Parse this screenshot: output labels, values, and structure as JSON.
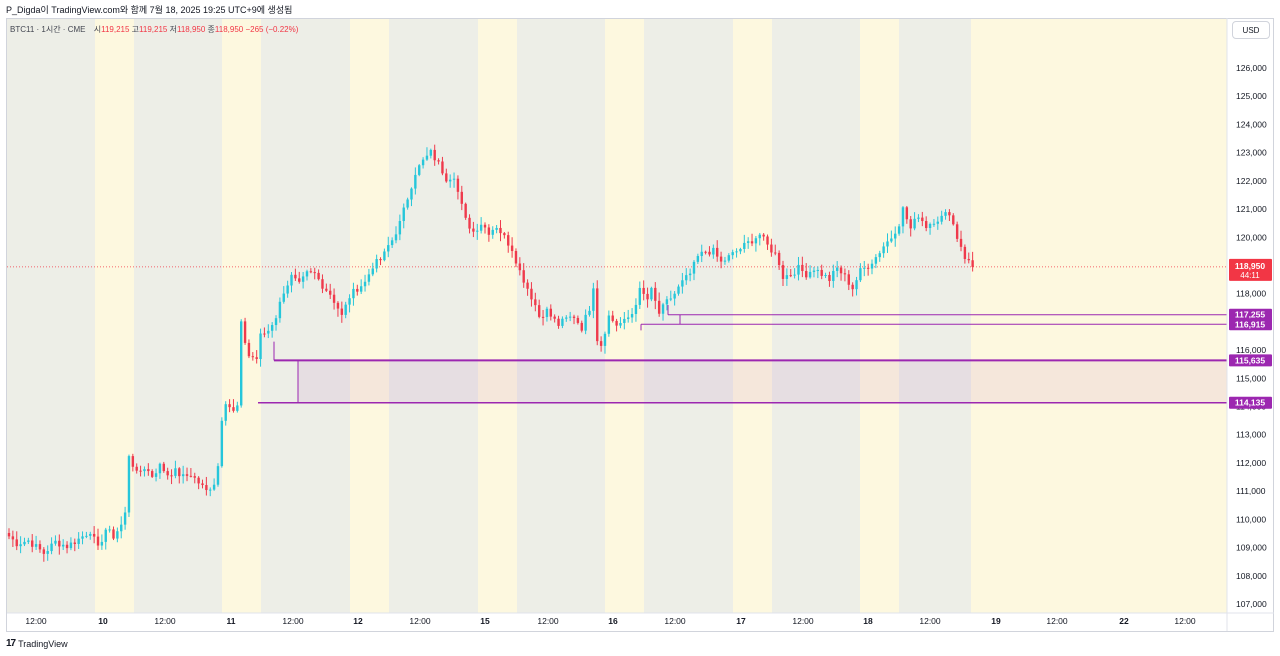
{
  "header": {
    "text": "P_Digda이 TradingView.com와 함께 7월 18, 2025 19:25 UTC+9에 생성됨"
  },
  "legend": {
    "symbol": "BTC11 · 1시간 · CME",
    "open_label": "시",
    "open_value": "119,215",
    "high_label": "고",
    "high_value": "119,215",
    "low_label": "저",
    "low_value": "118,950",
    "close_label": "종",
    "close_value": "118,950",
    "change": "−265 (−0.22%)"
  },
  "currency": "USD",
  "footer": {
    "logo": "17",
    "brand": "TradingView"
  },
  "colors": {
    "up": "#26c6da",
    "down": "#ef3a4c",
    "zone_line": "#9c27b0",
    "session_gray": "#edeee7",
    "session_yellow": "#fdf8df"
  },
  "chart_data": {
    "type": "candlestick",
    "symbol": "BTC11",
    "timeframe": "1시간",
    "ylim": [
      106700,
      127000
    ],
    "y_ticks": [
      107000,
      108000,
      109000,
      110000,
      111000,
      112000,
      113000,
      114000,
      115000,
      116000,
      117000,
      118000,
      119000,
      120000,
      121000,
      122000,
      123000,
      124000,
      125000,
      126000
    ],
    "y_tick_labels": [
      "107,000",
      "108,000",
      "109,000",
      "110,000",
      "111,000",
      "112,000",
      "113,000",
      "114,000",
      "115,000",
      "116,000",
      "117,000",
      "118,000",
      "119,000",
      "120,000",
      "121,000",
      "122,000",
      "123,000",
      "124,000",
      "125,000",
      "126,000"
    ],
    "x_tick_labels": [
      "12:00",
      "10",
      "12:00",
      "11",
      "12:00",
      "12",
      "12:00",
      "15",
      "12:00",
      "16",
      "12:00",
      "17",
      "12:00",
      "18",
      "12:00",
      "19",
      "12:00",
      "22",
      "12:00"
    ],
    "last_price": {
      "value": 118950,
      "label": "118,950",
      "countdown": "44:11"
    },
    "levels": [
      {
        "value": 117255,
        "label": "117,255"
      },
      {
        "value": 116915,
        "label": "116,915"
      },
      {
        "value": 115635,
        "label": "115,635"
      },
      {
        "value": 114135,
        "label": "114,135"
      }
    ],
    "zone": {
      "top": 115635,
      "bottom": 114135
    },
    "path": [
      [
        0,
        109400
      ],
      [
        2,
        109150
      ],
      [
        5,
        109250
      ],
      [
        9,
        108800
      ],
      [
        12,
        109200
      ],
      [
        15,
        109050
      ],
      [
        18,
        109300
      ],
      [
        21,
        109600
      ],
      [
        23,
        108950
      ],
      [
        25,
        109650
      ],
      [
        27,
        109400
      ],
      [
        29,
        109800
      ],
      [
        30,
        110200
      ],
      [
        31,
        112300
      ],
      [
        33,
        111600
      ],
      [
        35,
        111850
      ],
      [
        37,
        111550
      ],
      [
        39,
        111900
      ],
      [
        41,
        111600
      ],
      [
        43,
        111700
      ],
      [
        45,
        111500
      ],
      [
        47,
        111600
      ],
      [
        49,
        111300
      ],
      [
        51,
        111000
      ],
      [
        53,
        111300
      ],
      [
        54,
        111900
      ],
      [
        55,
        113600
      ],
      [
        56,
        114200
      ],
      [
        58,
        113800
      ],
      [
        59,
        114000
      ],
      [
        60,
        116900
      ],
      [
        61,
        116300
      ],
      [
        62,
        115800
      ],
      [
        64,
        115700
      ],
      [
        65,
        116500
      ],
      [
        67,
        116700
      ],
      [
        69,
        117200
      ],
      [
        71,
        118100
      ],
      [
        73,
        118600
      ],
      [
        75,
        118300
      ],
      [
        77,
        118700
      ],
      [
        79,
        118700
      ],
      [
        81,
        118300
      ],
      [
        83,
        118000
      ],
      [
        85,
        117500
      ],
      [
        86,
        117200
      ],
      [
        88,
        117900
      ],
      [
        90,
        118200
      ],
      [
        92,
        118400
      ],
      [
        94,
        119000
      ],
      [
        96,
        119200
      ],
      [
        97,
        119400
      ],
      [
        98,
        119700
      ],
      [
        99,
        119900
      ],
      [
        101,
        120500
      ],
      [
        103,
        121400
      ],
      [
        105,
        122300
      ],
      [
        107,
        122700
      ],
      [
        109,
        123000
      ],
      [
        111,
        122600
      ],
      [
        113,
        122100
      ],
      [
        115,
        122200
      ],
      [
        116,
        121600
      ],
      [
        118,
        120600
      ],
      [
        120,
        120200
      ],
      [
        122,
        120500
      ],
      [
        124,
        120200
      ],
      [
        126,
        120400
      ],
      [
        128,
        120000
      ],
      [
        130,
        119600
      ],
      [
        132,
        118800
      ],
      [
        134,
        118200
      ],
      [
        136,
        117600
      ],
      [
        137,
        117200
      ],
      [
        139,
        117400
      ],
      [
        140,
        117200
      ],
      [
        142,
        116900
      ],
      [
        144,
        117100
      ],
      [
        146,
        117200
      ],
      [
        148,
        116800
      ],
      [
        150,
        117500
      ],
      [
        151,
        118300
      ],
      [
        152,
        116400
      ],
      [
        153,
        116200
      ],
      [
        155,
        117200
      ],
      [
        157,
        116900
      ],
      [
        159,
        117000
      ],
      [
        161,
        117300
      ],
      [
        163,
        118100
      ],
      [
        165,
        117800
      ],
      [
        166,
        118100
      ],
      [
        168,
        117300
      ],
      [
        170,
        117700
      ],
      [
        172,
        118000
      ],
      [
        174,
        118400
      ],
      [
        176,
        118700
      ],
      [
        178,
        119300
      ],
      [
        180,
        119500
      ],
      [
        182,
        119500
      ],
      [
        184,
        119100
      ],
      [
        186,
        119300
      ],
      [
        188,
        119500
      ],
      [
        190,
        119700
      ],
      [
        192,
        119900
      ],
      [
        194,
        120100
      ],
      [
        196,
        119700
      ],
      [
        198,
        119400
      ],
      [
        199,
        119100
      ],
      [
        200,
        118600
      ],
      [
        202,
        118700
      ],
      [
        204,
        118900
      ],
      [
        206,
        118700
      ],
      [
        208,
        118900
      ],
      [
        210,
        118700
      ],
      [
        212,
        118500
      ],
      [
        214,
        118900
      ],
      [
        216,
        118600
      ],
      [
        218,
        118200
      ],
      [
        220,
        118800
      ],
      [
        222,
        119000
      ],
      [
        224,
        119300
      ],
      [
        226,
        119700
      ],
      [
        228,
        120000
      ],
      [
        230,
        120500
      ],
      [
        231,
        121000
      ],
      [
        233,
        120300
      ],
      [
        235,
        120800
      ],
      [
        237,
        120400
      ],
      [
        239,
        120600
      ],
      [
        241,
        120700
      ],
      [
        243,
        120900
      ],
      [
        245,
        120000
      ],
      [
        246,
        119700
      ],
      [
        247,
        119300
      ],
      [
        249,
        118950
      ]
    ],
    "grid": false
  }
}
